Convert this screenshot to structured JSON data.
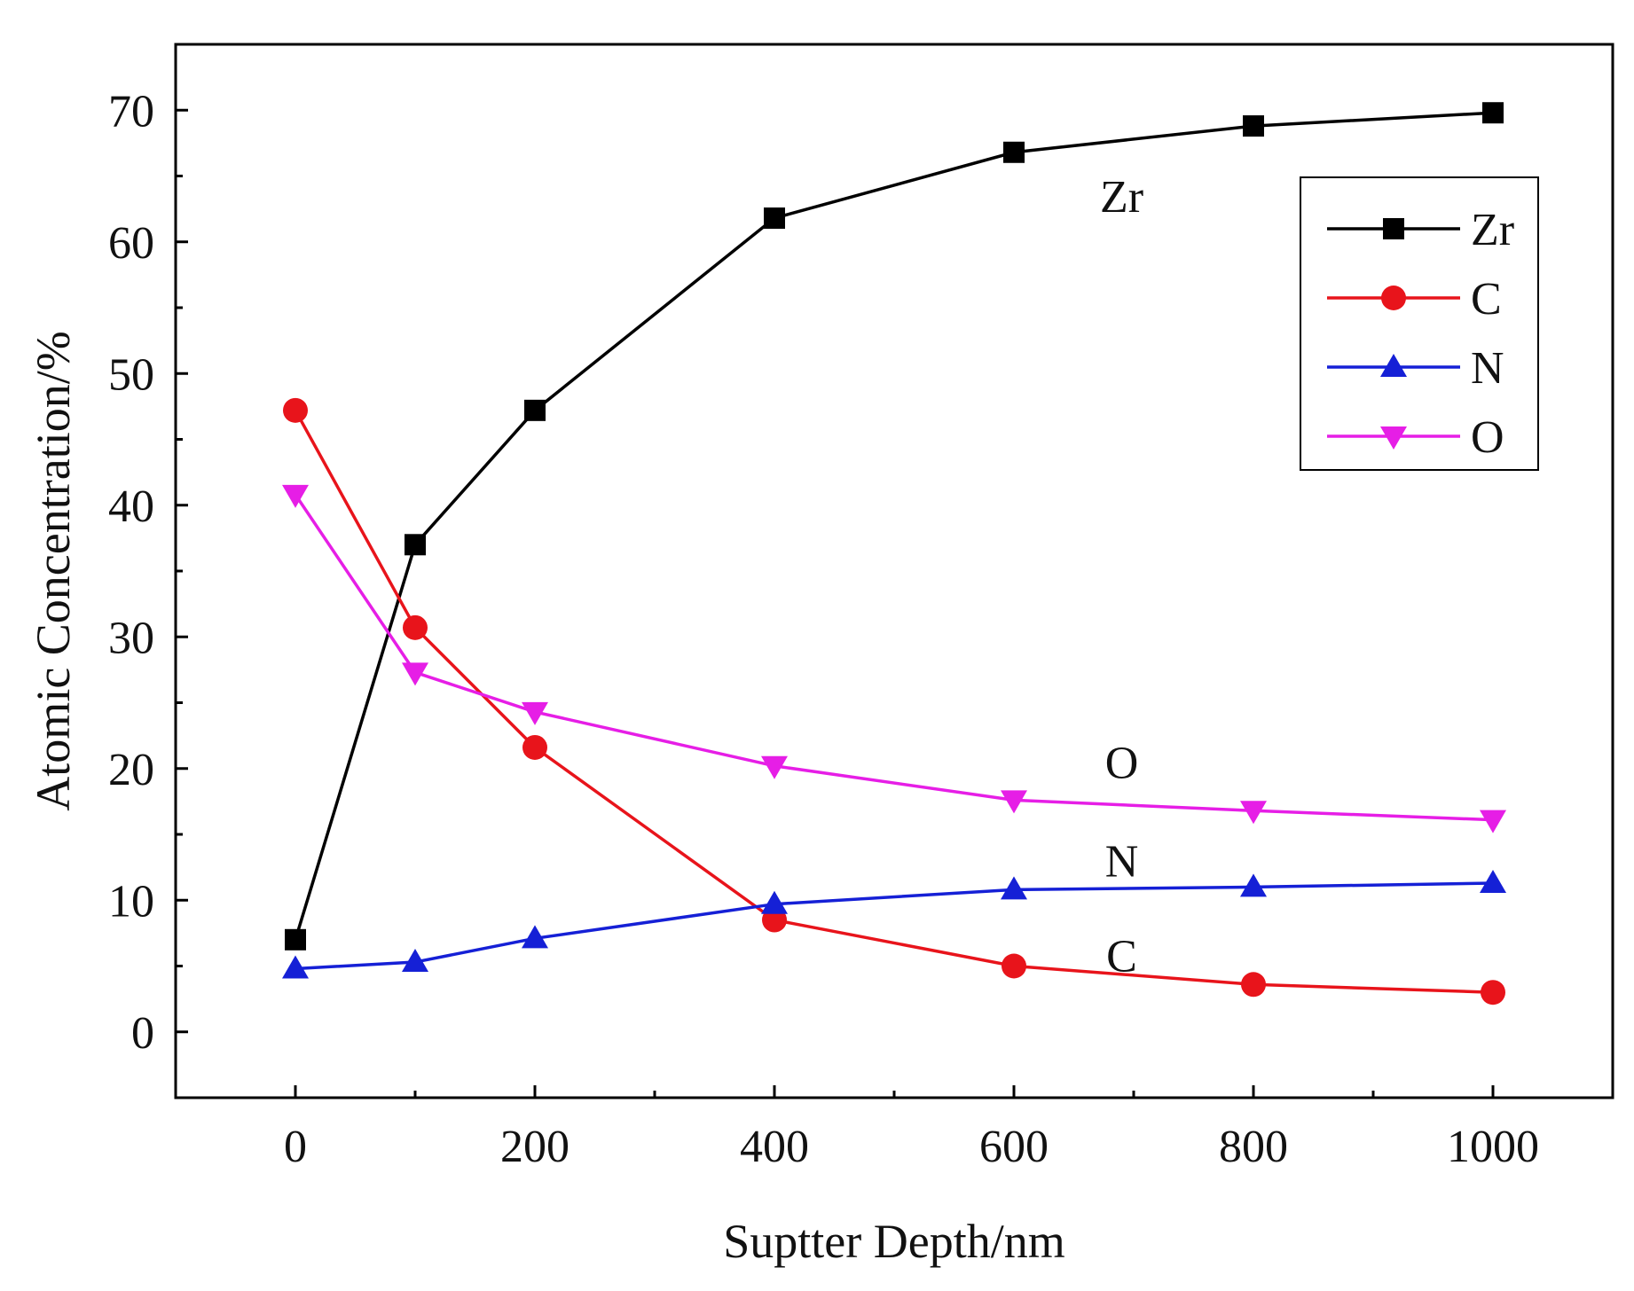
{
  "chart_data": {
    "type": "line",
    "xlabel": "Suptter Depth/nm",
    "ylabel": "Atomic Concentration/%",
    "xlim": [
      -100,
      1100
    ],
    "ylim": [
      -5,
      75
    ],
    "xticks": [
      0,
      200,
      400,
      600,
      800,
      1000
    ],
    "yticks": [
      0,
      10,
      20,
      30,
      40,
      50,
      60,
      70
    ],
    "x": [
      0,
      100,
      200,
      400,
      600,
      800,
      1000
    ],
    "series": [
      {
        "name": "Zr",
        "color": "#000000",
        "marker": "square",
        "values": [
          7.0,
          37.0,
          47.2,
          61.8,
          66.8,
          68.8,
          69.8
        ]
      },
      {
        "name": "C",
        "color": "#e8141b",
        "marker": "circle",
        "values": [
          47.2,
          30.7,
          21.6,
          8.5,
          5.0,
          3.6,
          3.0
        ]
      },
      {
        "name": "N",
        "color": "#1520d6",
        "marker": "triangle-up",
        "values": [
          4.8,
          5.3,
          7.1,
          9.7,
          10.8,
          11.0,
          11.3
        ]
      },
      {
        "name": "O",
        "color": "#e61ee6",
        "marker": "triangle-down",
        "values": [
          40.8,
          27.3,
          24.3,
          20.2,
          17.6,
          16.8,
          16.1
        ]
      }
    ],
    "legend": {
      "position": "top-right",
      "entries": [
        "Zr",
        "C",
        "N",
        "O"
      ]
    },
    "annotations": [
      {
        "text": "Zr",
        "x": 690,
        "y": 63.5
      },
      {
        "text": "O",
        "x": 690,
        "y": 20.5
      },
      {
        "text": "N",
        "x": 690,
        "y": 13.0
      },
      {
        "text": "C",
        "x": 690,
        "y": 5.8
      }
    ]
  }
}
